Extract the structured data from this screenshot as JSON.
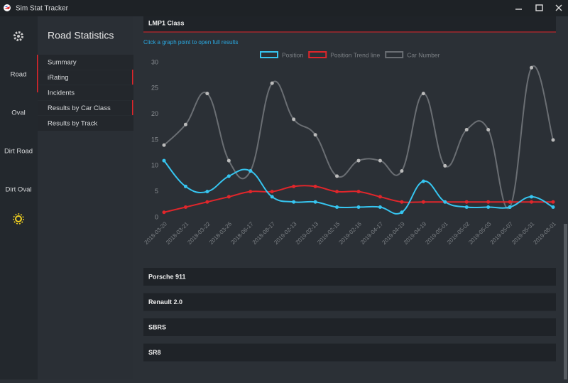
{
  "window": {
    "title": "Sim Stat Tracker"
  },
  "sidebar": {
    "items": [
      "Road",
      "Oval",
      "Dirt Road",
      "Dirt Oval"
    ]
  },
  "nav": {
    "title": "Road Statistics",
    "items": [
      "Summary",
      "iRating",
      "Incidents",
      "Results by Car Class",
      "Results by Track"
    ]
  },
  "panel": {
    "title": "LMP1 Class",
    "hint": "Click a graph point to open full results"
  },
  "chart_data": {
    "type": "line",
    "categories": [
      "2018-03-20",
      "2018-03-21",
      "2018-03-22",
      "2018-03-26",
      "2018-06-17",
      "2018-08-17",
      "2019-02-13",
      "2019-02-13",
      "2019-02-15",
      "2019-02-16",
      "2019-04-17",
      "2019-04-19",
      "2019-04-19",
      "2019-05-01",
      "2019-05-02",
      "2019-05-03",
      "2019-05-07",
      "2019-05-31",
      "2019-08-01"
    ],
    "series": [
      {
        "name": "Position",
        "color": "#36c5f0",
        "values": [
          11,
          6,
          5,
          8,
          9,
          4,
          3,
          3,
          2,
          2,
          2,
          1,
          7,
          3,
          2,
          2,
          2,
          4,
          2
        ]
      },
      {
        "name": "Position Trend line",
        "color": "#e0262b",
        "values": [
          1,
          2,
          3,
          4,
          5,
          5,
          6,
          6,
          5,
          5,
          4,
          3,
          3,
          3,
          3,
          3,
          3,
          3,
          3
        ]
      },
      {
        "name": "Car Number",
        "color": "#6a6e73",
        "values": [
          14,
          18,
          24,
          11,
          9,
          26,
          19,
          16,
          8,
          11,
          11,
          9,
          24,
          10,
          17,
          17,
          2,
          29,
          15
        ]
      }
    ],
    "ylim": [
      0,
      30
    ],
    "yticks": [
      0,
      5,
      10,
      15,
      20,
      25,
      30
    ],
    "grid": false,
    "legend": "top"
  },
  "panels": [
    "Porsche 911",
    "Renault 2.0",
    "SBRS",
    "SR8"
  ]
}
